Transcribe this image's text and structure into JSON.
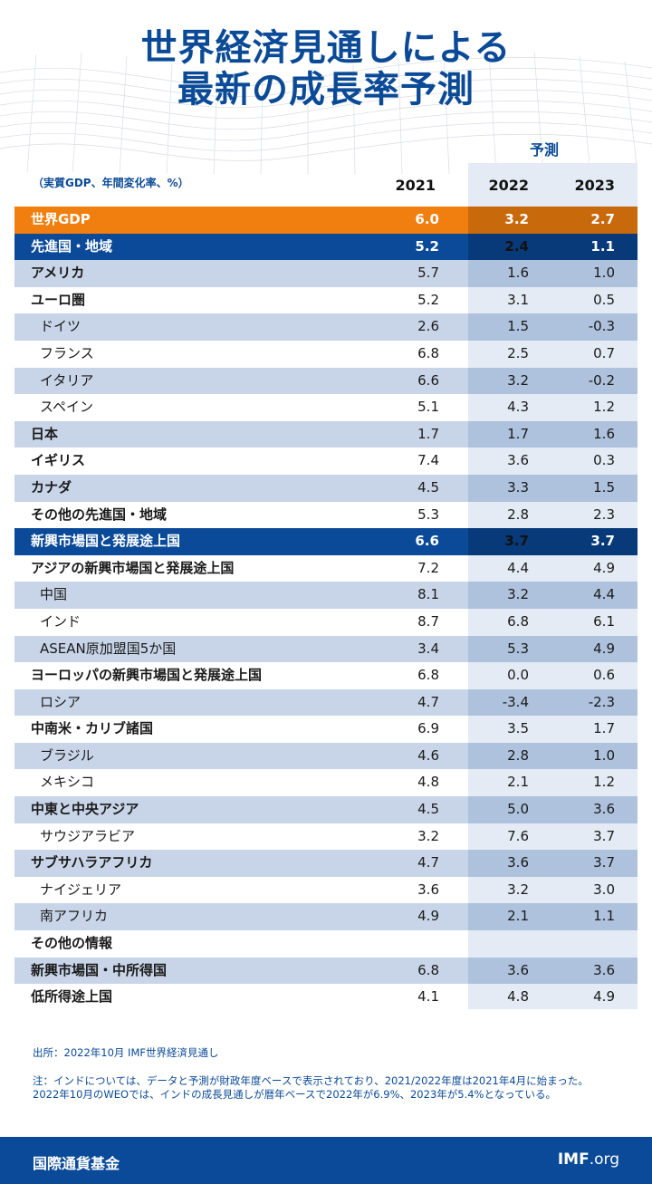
{
  "title": {
    "line1": "世界経済見通しによる",
    "line2": "最新の成長率予測"
  },
  "forecast_label": "予測",
  "unit_note": "（実質GDP、年間変化率、%）",
  "years": [
    "2021",
    "2022",
    "2023"
  ],
  "rows": [
    {
      "label": "世界GDP",
      "v": [
        "6.0",
        "3.2",
        "2.7"
      ],
      "type": "world"
    },
    {
      "label": "先進国・地域",
      "v": [
        "5.2",
        "2.4",
        "1.1"
      ],
      "type": "group"
    },
    {
      "label": "アメリカ",
      "v": [
        "5.7",
        "1.6",
        "1.0"
      ],
      "type": "main"
    },
    {
      "label": "ユーロ圏",
      "v": [
        "5.2",
        "3.1",
        "0.5"
      ],
      "type": "main"
    },
    {
      "label": "ドイツ",
      "v": [
        "2.6",
        "1.5",
        "-0.3"
      ],
      "type": "sub"
    },
    {
      "label": "フランス",
      "v": [
        "6.8",
        "2.5",
        "0.7"
      ],
      "type": "sub"
    },
    {
      "label": "イタリア",
      "v": [
        "6.6",
        "3.2",
        "-0.2"
      ],
      "type": "sub"
    },
    {
      "label": "スペイン",
      "v": [
        "5.1",
        "4.3",
        "1.2"
      ],
      "type": "sub"
    },
    {
      "label": "日本",
      "v": [
        "1.7",
        "1.7",
        "1.6"
      ],
      "type": "main"
    },
    {
      "label": "イギリス",
      "v": [
        "7.4",
        "3.6",
        "0.3"
      ],
      "type": "main"
    },
    {
      "label": "カナダ",
      "v": [
        "4.5",
        "3.3",
        "1.5"
      ],
      "type": "main"
    },
    {
      "label": "その他の先進国・地域",
      "v": [
        "5.3",
        "2.8",
        "2.3"
      ],
      "type": "main"
    },
    {
      "label": "新興市場国と発展途上国",
      "v": [
        "6.6",
        "3.7",
        "3.7"
      ],
      "type": "group"
    },
    {
      "label": "アジアの新興市場国と発展途上国",
      "v": [
        "7.2",
        "4.4",
        "4.9"
      ],
      "type": "main"
    },
    {
      "label": "中国",
      "v": [
        "8.1",
        "3.2",
        "4.4"
      ],
      "type": "sub"
    },
    {
      "label": "インド",
      "v": [
        "8.7",
        "6.8",
        "6.1"
      ],
      "type": "sub"
    },
    {
      "label": "ASEAN原加盟国5か国",
      "v": [
        "3.4",
        "5.3",
        "4.9"
      ],
      "type": "sub"
    },
    {
      "label": "ヨーロッパの新興市場国と発展途上国",
      "v": [
        "6.8",
        "0.0",
        "0.6"
      ],
      "type": "main"
    },
    {
      "label": "ロシア",
      "v": [
        "4.7",
        "-3.4",
        "-2.3"
      ],
      "type": "sub"
    },
    {
      "label": "中南米・カリブ諸国",
      "v": [
        "6.9",
        "3.5",
        "1.7"
      ],
      "type": "main"
    },
    {
      "label": "ブラジル",
      "v": [
        "4.6",
        "2.8",
        "1.0"
      ],
      "type": "sub"
    },
    {
      "label": "メキシコ",
      "v": [
        "4.8",
        "2.1",
        "1.2"
      ],
      "type": "sub"
    },
    {
      "label": "中東と中央アジア",
      "v": [
        "4.5",
        "5.0",
        "3.6"
      ],
      "type": "main"
    },
    {
      "label": "サウジアラビア",
      "v": [
        "3.2",
        "7.6",
        "3.7"
      ],
      "type": "sub"
    },
    {
      "label": "サブサハラアフリカ",
      "v": [
        "4.7",
        "3.6",
        "3.7"
      ],
      "type": "main"
    },
    {
      "label": "ナイジェリア",
      "v": [
        "3.6",
        "3.2",
        "3.0"
      ],
      "type": "sub"
    },
    {
      "label": "南アフリカ",
      "v": [
        "4.9",
        "2.1",
        "1.1"
      ],
      "type": "sub"
    },
    {
      "label": "その他の情報",
      "v": [
        "",
        "",
        ""
      ],
      "type": "main"
    },
    {
      "label": "新興市場国・中所得国",
      "v": [
        "6.8",
        "3.6",
        "3.6"
      ],
      "type": "main"
    },
    {
      "label": "低所得途上国",
      "v": [
        "4.1",
        "4.8",
        "4.9"
      ],
      "type": "main"
    }
  ],
  "source": "出所：2022年10月 IMF世界経済見通し",
  "note_line1": "注：インドについては、データと予測が財政年度ベースで表示されており、2021/2022年度は2021年4月に始まった。",
  "note_line2": "2022年10月のWEOでは、インドの成長見通しが暦年ベースで2022年が6.9%、2023年が5.4%となっている。",
  "footer": {
    "org": "国際通貨基金",
    "site_bold": "IMF",
    "site_rest": ".org"
  }
}
